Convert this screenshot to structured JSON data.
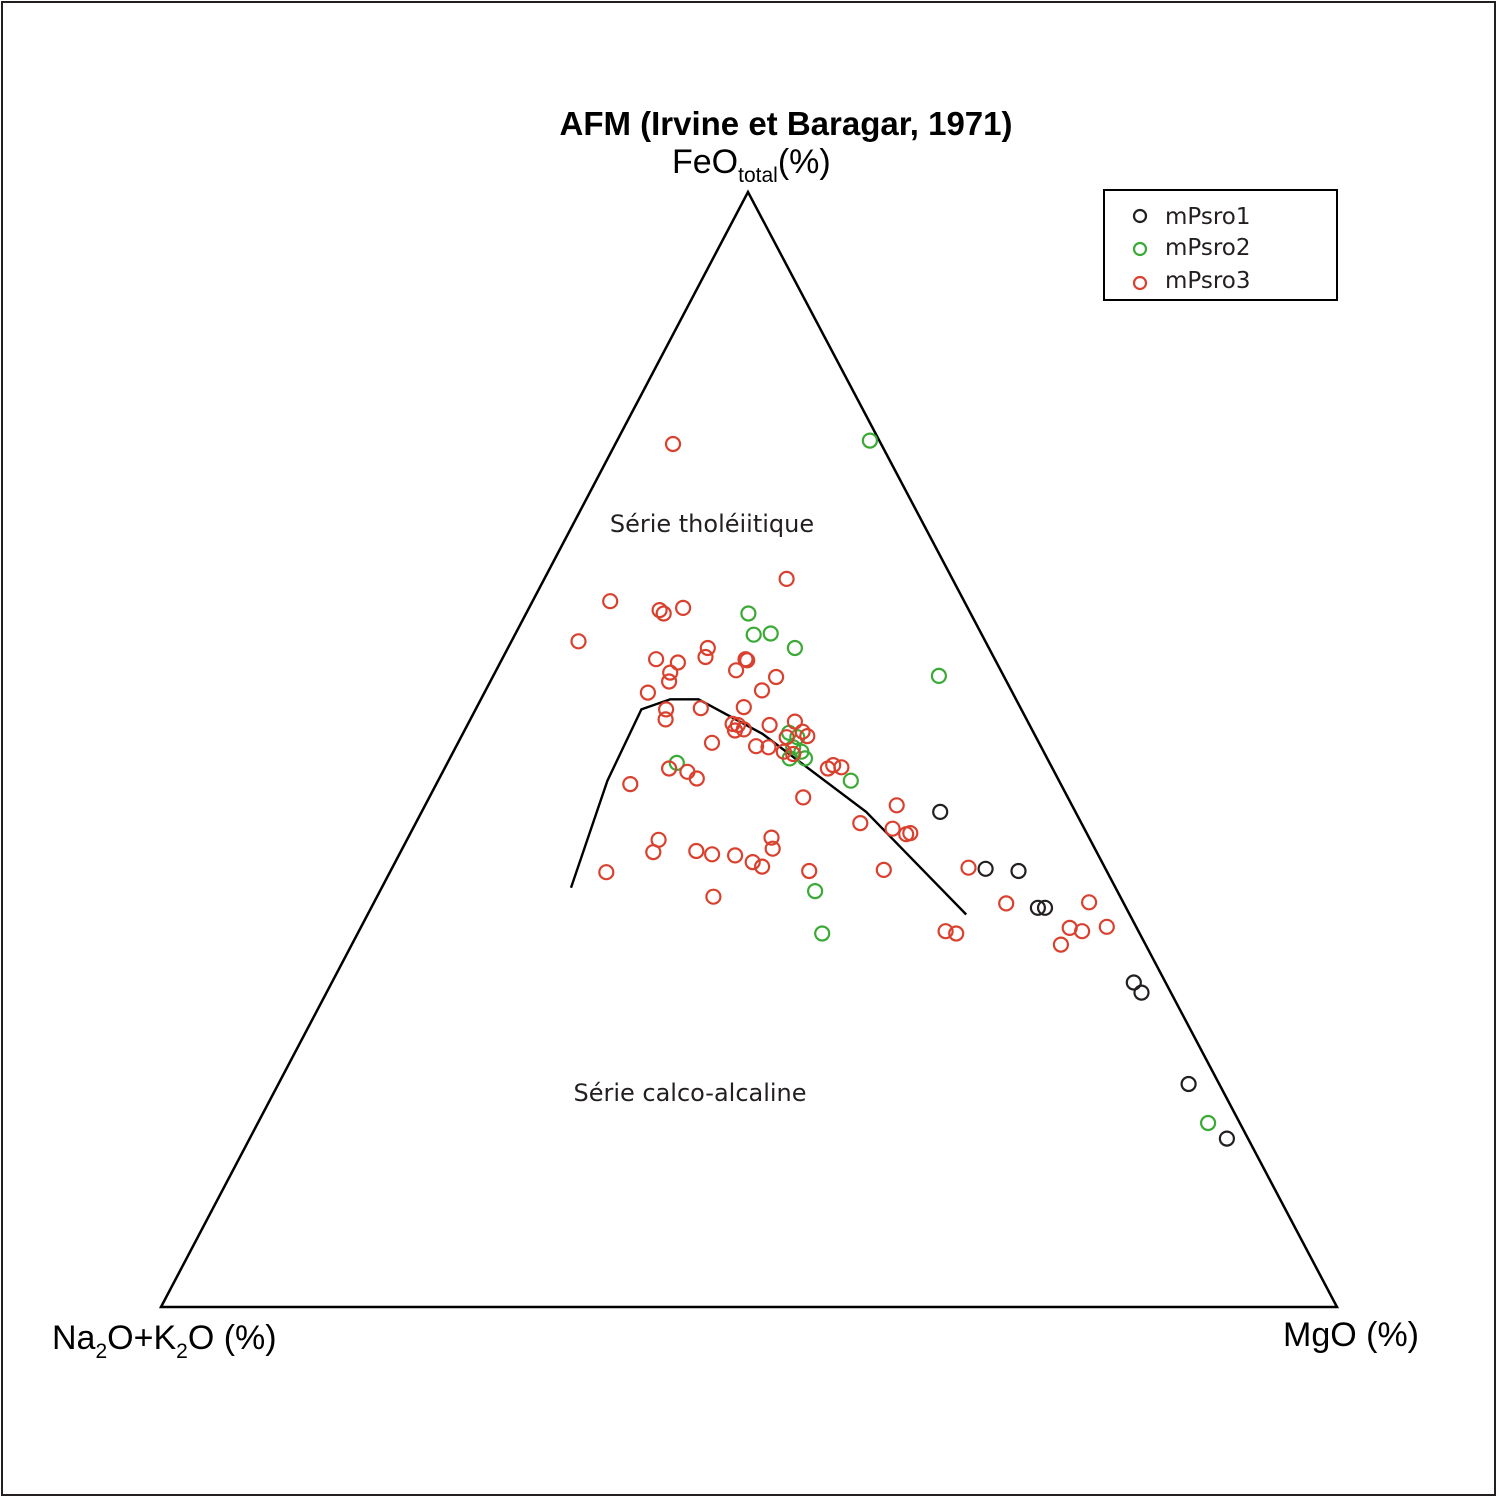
{
  "chart_data": {
    "type": "ternary-scatter",
    "title": "AFM (Irvine et Baragar, 1971)",
    "vertices": {
      "top": {
        "main": "FeO",
        "sub": "total",
        "suffix": "(%)"
      },
      "left": {
        "parts": [
          "Na",
          "2",
          "O+K",
          "2",
          "O (%)"
        ]
      },
      "right": {
        "label": "MgO (%)"
      }
    },
    "axis_order": [
      "A (Na2O+K2O)",
      "F (FeOtotal)",
      "M (MgO)"
    ],
    "regions": [
      {
        "label": "Série tholéiitique"
      },
      {
        "label": "Série calco-alcaline"
      }
    ],
    "boundary_line": [
      [
        46.3,
        37.6,
        16.1
      ],
      [
        38.4,
        47.2,
        14.4
      ],
      [
        32.3,
        53.6,
        14.1
      ],
      [
        29.4,
        54.5,
        16.1
      ],
      [
        27.0,
        54.5,
        18.5
      ],
      [
        23.1,
        51.4,
        25.5
      ],
      [
        17.8,
        44.4,
        37.8
      ],
      [
        13.9,
        35.2,
        50.9
      ]
    ],
    "legend": {
      "position": "top-right"
    },
    "series": [
      {
        "name": "mPsro1",
        "color": "#231f20",
        "points": [
          [
            11.5,
            44.4,
            44.1
          ],
          [
            10.2,
            39.3,
            50.5
          ],
          [
            7.5,
            39.1,
            53.4
          ],
          [
            7.5,
            35.8,
            56.7
          ],
          [
            6.9,
            35.8,
            57.3
          ],
          [
            2.7,
            29.1,
            68.2
          ],
          [
            2.5,
            28.2,
            69.3
          ],
          [
            2.6,
            20.0,
            77.4
          ],
          [
            1.8,
            15.1,
            83.1
          ]
        ]
      },
      {
        "name": "mPsro2",
        "color": "#3aa935",
        "points": [
          [
            0.8,
            77.7,
            21.5
          ],
          [
            18.9,
            62.2,
            18.9
          ],
          [
            19.4,
            60.3,
            20.3
          ],
          [
            17.9,
            60.4,
            21.7
          ],
          [
            16.5,
            59.1,
            24.4
          ],
          [
            5.5,
            56.6,
            37.9
          ],
          [
            31.7,
            48.8,
            19.5
          ],
          [
            20.8,
            51.5,
            27.7
          ],
          [
            20.3,
            51.1,
            28.6
          ],
          [
            21.1,
            50.2,
            28.7
          ],
          [
            20.6,
            49.8,
            29.6
          ],
          [
            21.9,
            49.2,
            28.9
          ],
          [
            20.6,
            49.2,
            30.2
          ],
          [
            17.7,
            47.2,
            35.1
          ],
          [
            25.7,
            37.3,
            37.0
          ],
          [
            27.0,
            33.5,
            39.5
          ],
          [
            2.7,
            16.5,
            80.8
          ]
        ]
      },
      {
        "name": "mPsro3",
        "color": "#d9412e",
        "points": [
          [
            17.7,
            77.4,
            4.9
          ],
          [
            14.1,
            65.3,
            20.6
          ],
          [
            30.1,
            63.3,
            6.6
          ],
          [
            24.2,
            62.7,
            13.1
          ],
          [
            26.3,
            62.5,
            11.2
          ],
          [
            26.1,
            62.2,
            11.7
          ],
          [
            34.6,
            59.7,
            5.7
          ],
          [
            23.9,
            59.1,
            17.0
          ],
          [
            24.5,
            58.3,
            17.2
          ],
          [
            28.8,
            58.1,
            13.1
          ],
          [
            21.1,
            58.0,
            20.9
          ],
          [
            21.2,
            58.1,
            20.7
          ],
          [
            27.1,
            57.8,
            15.1
          ],
          [
            22.5,
            57.1,
            20.4
          ],
          [
            28.2,
            56.9,
            14.9
          ],
          [
            28.7,
            56.1,
            15.2
          ],
          [
            19.4,
            56.5,
            24.1
          ],
          [
            21.2,
            55.3,
            23.5
          ],
          [
            31.0,
            55.1,
            13.9
          ],
          [
            27.2,
            53.7,
            19.1
          ],
          [
            30.2,
            53.6,
            16.2
          ],
          [
            30.7,
            52.7,
            16.6
          ],
          [
            23.5,
            53.8,
            22.7
          ],
          [
            25.2,
            52.3,
            22.5
          ],
          [
            24.8,
            52.2,
            23.0
          ],
          [
            24.5,
            51.8,
            23.7
          ],
          [
            25.3,
            51.7,
            23.0
          ],
          [
            19.8,
            52.5,
            27.7
          ],
          [
            22.1,
            52.2,
            25.7
          ],
          [
            21.2,
            51.1,
            27.7
          ],
          [
            19.6,
            51.6,
            28.8
          ],
          [
            19.4,
            51.2,
            29.4
          ],
          [
            27.8,
            50.6,
            21.6
          ],
          [
            24.2,
            50.3,
            25.5
          ],
          [
            23.2,
            50.2,
            26.6
          ],
          [
            22.1,
            49.8,
            28.1
          ],
          [
            21.4,
            49.6,
            29.0
          ],
          [
            18.5,
            48.6,
            32.9
          ],
          [
            17.9,
            48.4,
            33.7
          ],
          [
            19.1,
            48.3,
            32.6
          ],
          [
            32.6,
            48.3,
            19.1
          ],
          [
            31.2,
            48.0,
            20.8
          ],
          [
            30.7,
            47.4,
            21.9
          ],
          [
            36.6,
            46.9,
            16.5
          ],
          [
            22.5,
            45.7,
            31.8
          ],
          [
            14.9,
            45.0,
            40.1
          ],
          [
            18.8,
            43.4,
            37.8
          ],
          [
            16.3,
            42.9,
            40.8
          ],
          [
            15.4,
            42.4,
            42.2
          ],
          [
            15.0,
            42.5,
            42.5
          ],
          [
            27.0,
            42.1,
            30.9
          ],
          [
            36.7,
            41.9,
            21.4
          ],
          [
            27.4,
            41.1,
            31.5
          ],
          [
            37.7,
            40.8,
            21.5
          ],
          [
            34.0,
            40.9,
            25.1
          ],
          [
            30.9,
            40.5,
            28.6
          ],
          [
            32.8,
            40.6,
            26.6
          ],
          [
            29.7,
            39.9,
            30.4
          ],
          [
            29.1,
            39.5,
            31.4
          ],
          [
            18.9,
            39.2,
            41.9
          ],
          [
            25.3,
            39.1,
            35.6
          ],
          [
            42.6,
            39.0,
            18.4
          ],
          [
            11.6,
            39.4,
            49.0
          ],
          [
            34.6,
            36.8,
            28.6
          ],
          [
            10.0,
            36.2,
            53.8
          ],
          [
            2.9,
            36.3,
            60.8
          ],
          [
            4.8,
            33.7,
            61.5
          ],
          [
            5.7,
            34.0,
            60.3
          ],
          [
            16.4,
            33.7,
            49.9
          ],
          [
            15.6,
            33.5,
            50.9
          ],
          [
            7.2,
            32.5,
            60.3
          ],
          [
            2.5,
            34.1,
            63.4
          ]
        ]
      }
    ]
  }
}
